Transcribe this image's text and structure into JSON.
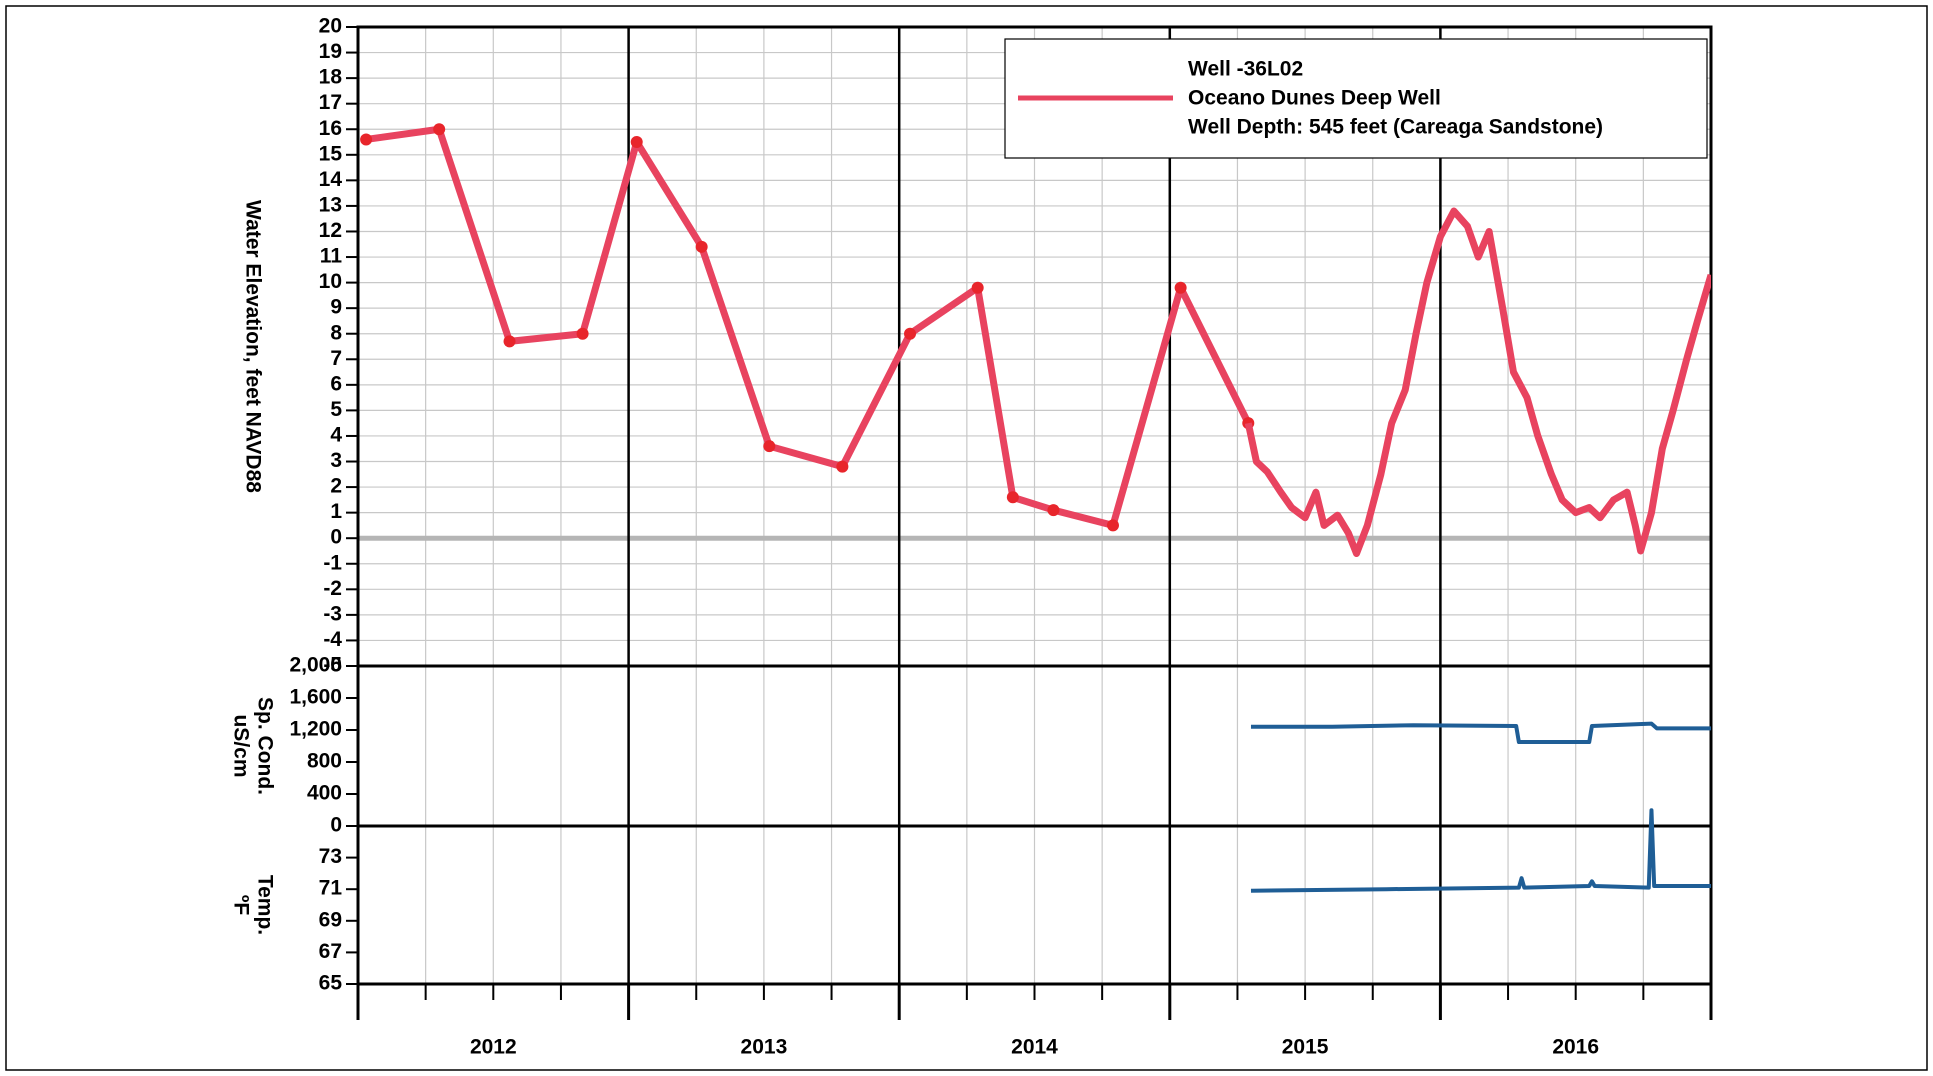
{
  "chart_data": [
    {
      "type": "line",
      "ylabel": [
        "Water Elevation, feet NAVD88"
      ],
      "ylim": [
        -5,
        20
      ],
      "yticks": [
        -5,
        -4,
        -3,
        -2,
        -1,
        0,
        1,
        2,
        3,
        4,
        5,
        6,
        7,
        8,
        9,
        10,
        11,
        12,
        13,
        14,
        15,
        16,
        17,
        18,
        19,
        20
      ],
      "grid": true,
      "legend": [
        "Well -36L02",
        "Oceano Dunes Deep Well",
        "Well Depth: 545 feet (Careaga Sandstone)"
      ],
      "series": [
        {
          "color": "#e8435f",
          "markers": true,
          "x": [
            2012.03,
            2012.3,
            2012.56,
            2012.83,
            2013.03,
            2013.27,
            2013.52,
            2013.79,
            2014.04,
            2014.29,
            2014.42,
            2014.57,
            2014.79,
            2015.04,
            2015.29
          ],
          "values": [
            15.6,
            16.0,
            7.7,
            8.0,
            15.5,
            11.4,
            3.6,
            2.8,
            8.0,
            9.8,
            1.6,
            1.1,
            0.5,
            9.8,
            4.5
          ]
        },
        {
          "color": "#e8435f",
          "markers": false,
          "x": [
            2015.29,
            2015.32,
            2015.36,
            2015.41,
            2015.45,
            2015.5,
            2015.54,
            2015.57,
            2015.62,
            2015.66,
            2015.69,
            2015.73,
            2015.78,
            2015.82,
            2015.87,
            2015.91,
            2015.95,
            2016.0,
            2016.05,
            2016.1,
            2016.14,
            2016.18,
            2016.23,
            2016.27,
            2016.32,
            2016.36,
            2016.41,
            2016.45,
            2016.5,
            2016.55,
            2016.59,
            2016.64,
            2016.69,
            2016.72,
            2016.74,
            2016.78,
            2016.82,
            2016.86,
            2016.91,
            2016.95,
            2017.0
          ],
          "values": [
            4.5,
            3.0,
            2.6,
            1.8,
            1.2,
            0.8,
            1.8,
            0.5,
            0.9,
            0.2,
            -0.6,
            0.5,
            2.5,
            4.5,
            5.8,
            8.0,
            10.0,
            11.8,
            12.8,
            12.2,
            11.0,
            12.0,
            9.0,
            6.5,
            5.5,
            4.0,
            2.5,
            1.5,
            1.0,
            1.2,
            0.8,
            1.5,
            1.8,
            0.5,
            -0.5,
            1.0,
            3.5,
            5.0,
            7.0,
            8.5,
            10.3
          ]
        }
      ]
    },
    {
      "type": "line",
      "ylabel": [
        "Sp. Cond.",
        "uS/cm"
      ],
      "ylim": [
        0,
        2000
      ],
      "yticks": [
        0,
        400,
        800,
        {
          "value": 1200,
          "label": "1,200"
        },
        {
          "value": 1600,
          "label": "1,600"
        },
        {
          "value": 2000,
          "label": "2,000"
        }
      ],
      "grid": false,
      "series": [
        {
          "color": "#1f5e96",
          "markers": false,
          "x": [
            2015.3,
            2015.6,
            2015.9,
            2016.28,
            2016.29,
            2016.55,
            2016.56,
            2016.78,
            2016.8,
            2017.0
          ],
          "values": [
            1240,
            1240,
            1260,
            1250,
            1050,
            1050,
            1250,
            1280,
            1220,
            1220
          ]
        }
      ]
    },
    {
      "type": "line",
      "ylabel": [
        "Temp.",
        "ºF"
      ],
      "ylim": [
        65,
        75
      ],
      "yticks": [
        65,
        67,
        69,
        71,
        73
      ],
      "grid": false,
      "xlim": [
        2012,
        2017
      ],
      "xticks": [
        2012,
        2013,
        2014,
        2015,
        2016,
        2017
      ],
      "year_labels": [
        "2012",
        "2013",
        "2014",
        "2015",
        "2016"
      ],
      "series": [
        {
          "color": "#1f5e96",
          "markers": false,
          "x": [
            2015.3,
            2015.8,
            2016.29,
            2016.3,
            2016.31,
            2016.55,
            2016.56,
            2016.57,
            2016.77,
            2016.78,
            2016.79,
            2017.0
          ],
          "values": [
            70.9,
            71.0,
            71.1,
            71.7,
            71.1,
            71.2,
            71.5,
            71.2,
            71.1,
            76.0,
            71.2,
            71.2
          ]
        }
      ]
    }
  ]
}
